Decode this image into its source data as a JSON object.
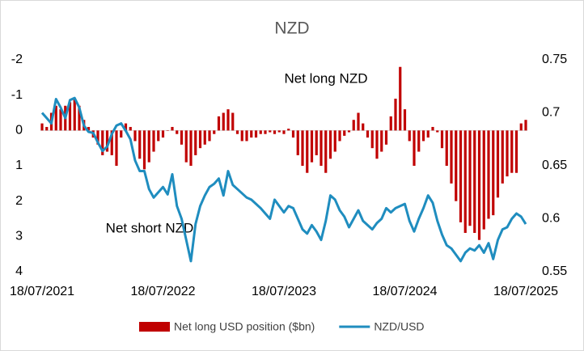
{
  "chart_data": {
    "type": "bar-line",
    "title": "NZD",
    "annotations": [
      "Net long NZD",
      "Net short NZD"
    ],
    "categories": [
      "18/07/2021",
      null,
      null,
      null,
      null,
      null,
      null,
      null,
      null,
      null,
      null,
      null,
      null,
      null,
      null,
      null,
      null,
      null,
      null,
      null,
      null,
      null,
      null,
      null,
      null,
      null,
      "18/07/2022",
      null,
      null,
      null,
      null,
      null,
      null,
      null,
      null,
      null,
      null,
      null,
      null,
      null,
      null,
      null,
      null,
      null,
      null,
      null,
      null,
      null,
      null,
      null,
      null,
      null,
      "18/07/2023",
      null,
      null,
      null,
      null,
      null,
      null,
      null,
      null,
      null,
      null,
      null,
      null,
      null,
      null,
      null,
      null,
      null,
      null,
      null,
      null,
      null,
      null,
      null,
      null,
      null,
      "18/07/2024",
      null,
      null,
      null,
      null,
      null,
      null,
      null,
      null,
      null,
      null,
      null,
      null,
      null,
      null,
      null,
      null,
      null,
      null,
      null,
      null,
      null,
      null,
      null,
      null,
      null,
      "18/07/2025"
    ],
    "series": [
      {
        "name": "Net long USD position ($bn)",
        "type": "bar",
        "color": "#c00000",
        "axis": "y",
        "values": [
          -0.2,
          -0.1,
          -0.5,
          -0.7,
          -0.6,
          -0.7,
          -0.8,
          -0.9,
          -0.7,
          -0.3,
          -0.1,
          0.2,
          0.4,
          0.7,
          0.6,
          0.7,
          1.0,
          0.2,
          -0.2,
          -0.1,
          0.3,
          0.8,
          1.1,
          0.9,
          0.6,
          0.3,
          0.2,
          0,
          -0.1,
          0.1,
          0.4,
          0.9,
          1.0,
          0.7,
          0.5,
          0.4,
          0.3,
          0.1,
          -0.4,
          -0.5,
          -0.6,
          -0.5,
          0.1,
          0.3,
          0.3,
          0.2,
          0.2,
          0.1,
          0.1,
          0.05,
          0.1,
          0.05,
          0.1,
          -0.05,
          0.2,
          0.7,
          1.0,
          1.2,
          0.9,
          0.7,
          1.0,
          1.2,
          0.8,
          0.6,
          0.3,
          0.15,
          0.05,
          -0.3,
          -0.5,
          -0.2,
          0.2,
          0.5,
          0.8,
          0.6,
          0.4,
          -0.4,
          -0.9,
          -1.8,
          -0.6,
          0.3,
          1.0,
          0.6,
          0.3,
          0.2,
          -0.1,
          0.05,
          0.5,
          1.0,
          1.5,
          2.0,
          2.6,
          2.9,
          2.7,
          2.9,
          3.1,
          2.8,
          2.5,
          2.4,
          1.9,
          1.5,
          1.3,
          1.2,
          1.2,
          -0.2,
          -0.3
        ]
      },
      {
        "name": "NZD/USD",
        "type": "line",
        "color": "#1f8dbf",
        "axis": "y2",
        "values": [
          0.7,
          0.695,
          0.69,
          0.713,
          0.705,
          0.695,
          0.712,
          0.714,
          0.705,
          0.688,
          0.682,
          0.681,
          0.672,
          0.664,
          0.668,
          0.68,
          0.688,
          0.69,
          0.683,
          0.675,
          0.655,
          0.645,
          0.645,
          0.628,
          0.62,
          0.625,
          0.63,
          0.623,
          0.642,
          0.612,
          0.6,
          0.58,
          0.56,
          0.595,
          0.612,
          0.622,
          0.63,
          0.633,
          0.638,
          0.622,
          0.645,
          0.632,
          0.628,
          0.624,
          0.62,
          0.618,
          0.614,
          0.61,
          0.605,
          0.6,
          0.618,
          0.612,
          0.606,
          0.612,
          0.61,
          0.6,
          0.59,
          0.586,
          0.594,
          0.588,
          0.58,
          0.598,
          0.622,
          0.618,
          0.608,
          0.602,
          0.592,
          0.6,
          0.608,
          0.598,
          0.594,
          0.59,
          0.596,
          0.6,
          0.61,
          0.606,
          0.61,
          0.612,
          0.614,
          0.598,
          0.588,
          0.6,
          0.61,
          0.622,
          0.615,
          0.598,
          0.585,
          0.575,
          0.572,
          0.566,
          0.56,
          0.568,
          0.572,
          0.57,
          0.575,
          0.568,
          0.577,
          0.562,
          0.58,
          0.59,
          0.592,
          0.6,
          0.605,
          0.602,
          0.595
        ]
      }
    ],
    "ylim": [
      -2,
      4
    ],
    "y_inverted": true,
    "yticks": [
      -2,
      -1,
      0,
      1,
      2,
      3,
      4
    ],
    "y2lim": [
      0.55,
      0.75
    ],
    "y2ticks": [
      0.55,
      0.6,
      0.65,
      0.7,
      0.75
    ],
    "grid": false,
    "legend": "bottom"
  }
}
